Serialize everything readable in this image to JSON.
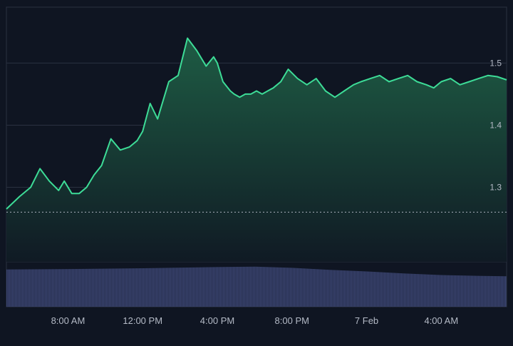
{
  "theme": {
    "background": "#0f1522",
    "line_color": "#3ddc97",
    "area_top": "#1e5c44",
    "area_bottom": "#101a24",
    "grid_color": "#2a3140",
    "volume_color": "#3a4470",
    "axis_text": "#b4bac6",
    "baseline_dotted": "#aab0bc"
  },
  "chart_data": [
    {
      "type": "area",
      "title": "",
      "xlabel": "",
      "ylabel": "",
      "x_unit": "hours",
      "xlim": [
        4.7,
        31.5
      ],
      "ylim": [
        1.18,
        1.59
      ],
      "y_ticks": [
        1.3,
        1.4,
        1.5
      ],
      "y_tick_labels": [
        "1.3",
        "1.4",
        "1.5"
      ],
      "x_ticks": [
        8,
        12,
        16,
        20,
        24,
        28
      ],
      "x_tick_labels": [
        "8:00 AM",
        "12:00 PM",
        "4:00 PM",
        "8:00 PM",
        "7 Feb",
        "4:00 AM"
      ],
      "grid": true,
      "reference_line": 1.26,
      "x": [
        4.7,
        5.4,
        6.0,
        6.5,
        7.0,
        7.5,
        7.8,
        8.2,
        8.6,
        9.0,
        9.4,
        9.8,
        10.3,
        10.8,
        11.3,
        11.7,
        12.0,
        12.4,
        12.8,
        13.0,
        13.4,
        13.9,
        14.4,
        14.9,
        15.4,
        15.8,
        16.0,
        16.3,
        16.7,
        16.9,
        17.2,
        17.5,
        17.8,
        18.1,
        18.4,
        18.7,
        19.0,
        19.4,
        19.8,
        20.3,
        20.8,
        21.3,
        21.8,
        22.3,
        22.8,
        23.3,
        23.7,
        24.2,
        24.7,
        25.2,
        25.7,
        26.2,
        26.7,
        27.2,
        27.6,
        28.0,
        28.5,
        29.0,
        29.5,
        30.0,
        30.5,
        31.0,
        31.5
      ],
      "y": [
        1.265,
        1.285,
        1.3,
        1.33,
        1.31,
        1.295,
        1.31,
        1.29,
        1.29,
        1.3,
        1.32,
        1.335,
        1.378,
        1.36,
        1.365,
        1.375,
        1.39,
        1.435,
        1.41,
        1.43,
        1.47,
        1.48,
        1.54,
        1.52,
        1.495,
        1.51,
        1.5,
        1.47,
        1.455,
        1.45,
        1.445,
        1.45,
        1.45,
        1.455,
        1.45,
        1.455,
        1.46,
        1.47,
        1.49,
        1.475,
        1.465,
        1.475,
        1.455,
        1.445,
        1.455,
        1.465,
        1.47,
        1.475,
        1.48,
        1.47,
        1.475,
        1.48,
        1.47,
        1.465,
        1.46,
        1.47,
        1.475,
        1.465,
        1.47,
        1.475,
        1.48,
        1.478,
        1.473
      ]
    },
    {
      "type": "bar",
      "title": "",
      "xlabel": "",
      "ylabel": "",
      "x_unit": "hours",
      "x": [
        4.7,
        8.0,
        12.0,
        16.0,
        18.0,
        20.0,
        22.0,
        24.0,
        26.0,
        28.0,
        30.0,
        31.5
      ],
      "values": [
        0.93,
        0.94,
        0.96,
        0.99,
        1.0,
        0.97,
        0.92,
        0.88,
        0.83,
        0.79,
        0.77,
        0.76
      ],
      "ylim": [
        0,
        1.12
      ]
    }
  ]
}
